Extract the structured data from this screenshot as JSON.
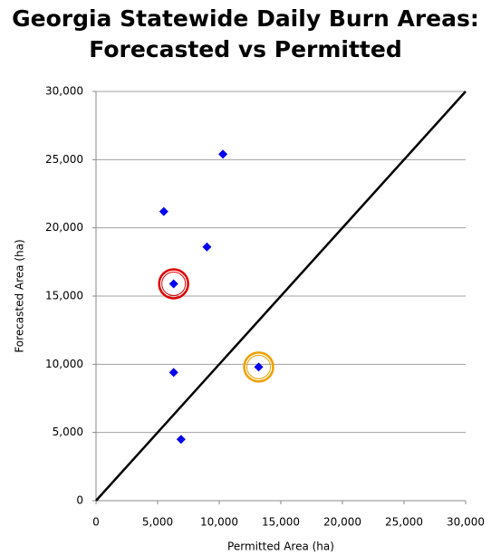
{
  "chart_data": {
    "type": "scatter",
    "title": "Georgia Statewide Daily Burn Areas: Forecasted vs Permitted",
    "x_label": "Permitted Area (ha)",
    "y_label": "Forecasted Area (ha)",
    "x": [
      10300,
      5500,
      9000,
      6300,
      6300,
      13200,
      6900
    ],
    "values": [
      25400,
      21200,
      18600,
      15900,
      9400,
      9800,
      4500
    ],
    "color": "#0000ee",
    "xlim": [
      0,
      30000
    ],
    "ylim": [
      0,
      30000
    ],
    "xticks": [
      0,
      {
        "value": 5000,
        "label": "5,000"
      },
      {
        "value": 10000,
        "label": "10,000"
      },
      {
        "value": 15000,
        "label": "15,000"
      },
      {
        "value": 20000,
        "label": "20,000"
      },
      {
        "value": 25000,
        "label": "25,000"
      },
      {
        "value": 30000,
        "label": "30,000"
      }
    ],
    "yticks": [
      0,
      {
        "value": 5000,
        "label": "5,000"
      },
      {
        "value": 10000,
        "label": "10,000"
      },
      {
        "value": 15000,
        "label": "15,000"
      },
      {
        "value": 20000,
        "label": "20,000"
      },
      {
        "value": 25000,
        "label": "25,000"
      },
      {
        "value": 30000,
        "label": "30,000"
      }
    ],
    "grid": true,
    "identity_line": true,
    "highlights": [
      {
        "index": 3,
        "color": "#e00000"
      },
      {
        "index": 5,
        "color": "#f0a000"
      }
    ]
  }
}
